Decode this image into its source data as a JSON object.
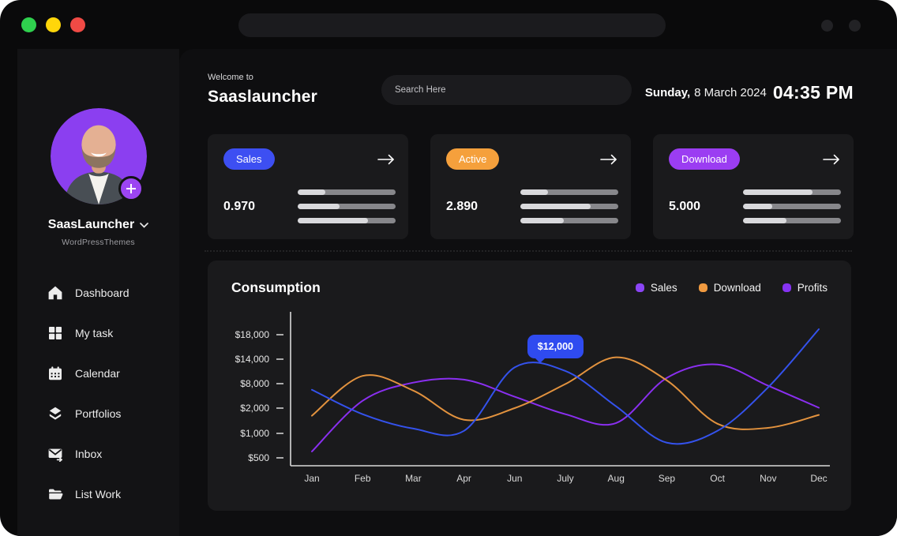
{
  "titlebar": {
    "traffic_lights": [
      {
        "name": "green",
        "color": "#2FD14E"
      },
      {
        "name": "yellow",
        "color": "#FFD60A"
      },
      {
        "name": "red",
        "color": "#F04A45"
      }
    ]
  },
  "sidebar": {
    "profile": {
      "name": "SaasLauncher",
      "org": "WordPressThemes"
    },
    "items": [
      {
        "label": "Dashboard",
        "icon": "home-icon"
      },
      {
        "label": "My task",
        "icon": "grid-icon"
      },
      {
        "label": "Calendar",
        "icon": "calendar-icon"
      },
      {
        "label": "Portfolios",
        "icon": "layers-icon"
      },
      {
        "label": "Inbox",
        "icon": "inbox-icon"
      },
      {
        "label": "List Work",
        "icon": "folder-icon"
      }
    ]
  },
  "header": {
    "welcome": "Welcome to",
    "app_name": "Saaslauncher",
    "search_placeholder": "Search Here",
    "date_day": "Sunday,",
    "date_rest": "8 March 2024",
    "time": "04:35 PM"
  },
  "stats": [
    {
      "label": "Sales",
      "badge_color": "#3D4FF2",
      "value": "0.970",
      "bars": [
        28,
        43,
        72
      ]
    },
    {
      "label": "Active",
      "badge_color": "#F5A03C",
      "value": "2.890",
      "bars": [
        28,
        72,
        44
      ]
    },
    {
      "label": "Download",
      "badge_color": "#9B3DF2",
      "value": "5.000",
      "bars": [
        71,
        30,
        44
      ]
    }
  ],
  "chart_data": {
    "type": "line",
    "title": "Consumption",
    "x": [
      "Jan",
      "Feb",
      "Mar",
      "Apr",
      "Jun",
      "July",
      "Aug",
      "Sep",
      "Oct",
      "Nov",
      "Dec"
    ],
    "y_tick_labels": [
      "$18,000",
      "$14,000",
      "$8,000",
      "$2,000",
      "$1,000",
      "$500"
    ],
    "y_tick_values": [
      18000,
      14000,
      8000,
      2000,
      1000,
      500
    ],
    "grid": false,
    "legend_position": "top-right",
    "series": [
      {
        "name": "Sales",
        "line_color": "#3452EC",
        "legend_color": "#8B45F6",
        "values": [
          6500,
          1760,
          1190,
          1100,
          12000,
          11100,
          2450,
          810,
          1100,
          7100,
          18900
        ]
      },
      {
        "name": "Download",
        "line_color": "#E2923E",
        "legend_color": "#F09A40",
        "values": [
          1700,
          9900,
          6300,
          1540,
          2000,
          7900,
          14300,
          8800,
          1380,
          1220,
          1730
        ]
      },
      {
        "name": "Profits",
        "line_color": "#8A2FF0",
        "legend_color": "#8633F2",
        "values": [
          630,
          3800,
          8250,
          9000,
          4800,
          1760,
          1410,
          9400,
          12700,
          7500,
          2100
        ]
      }
    ],
    "tooltip": {
      "text": "$12,000",
      "value": 12000,
      "x_index": 4,
      "series": "Sales",
      "color": "#2F4BF0"
    }
  }
}
